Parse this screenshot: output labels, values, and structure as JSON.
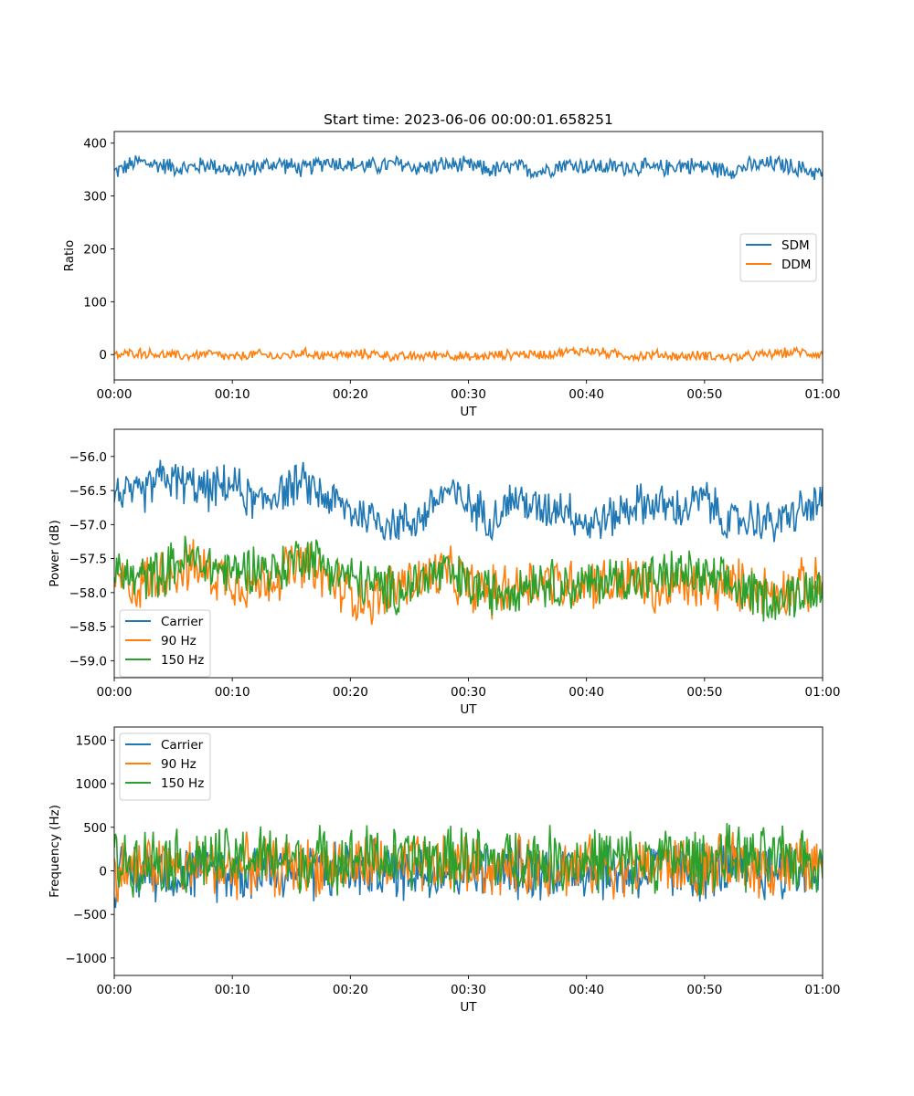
{
  "figure_title": "Start time: 2023-06-06 00:00:01.658251",
  "x_ticks": [
    "00:00",
    "00:10",
    "00:20",
    "00:30",
    "00:40",
    "00:50",
    "01:00"
  ],
  "colors": {
    "blue": "#1f77b4",
    "orange": "#ff7f0e",
    "green": "#2ca02c"
  },
  "chart_data": [
    {
      "type": "line",
      "xlabel": "UT",
      "ylabel": "Ratio",
      "xlim": [
        "00:00",
        "01:00"
      ],
      "ylim": [
        -48,
        422
      ],
      "y_ticks": [
        0,
        100,
        200,
        300,
        400
      ],
      "y_tick_labels": [
        "0",
        "100",
        "200",
        "300",
        "400"
      ],
      "legend_position": "center-right",
      "x_minutes": [
        0,
        2,
        4,
        6,
        8,
        10,
        12,
        14,
        16,
        18,
        20,
        22,
        24,
        26,
        28,
        30,
        32,
        34,
        36,
        38,
        40,
        42,
        44,
        46,
        48,
        50,
        52,
        54,
        56,
        58,
        60
      ],
      "series": [
        {
          "name": "SDM",
          "color": "#1f77b4",
          "values": [
            345,
            365,
            358,
            352,
            360,
            348,
            355,
            362,
            350,
            366,
            358,
            356,
            361,
            353,
            359,
            357,
            349,
            355,
            346,
            360,
            357,
            354,
            356,
            351,
            359,
            355,
            348,
            357,
            361,
            352,
            343
          ],
          "noise": 16
        },
        {
          "name": "DDM",
          "color": "#ff7f0e",
          "values": [
            -2,
            4,
            0,
            -3,
            2,
            -6,
            1,
            -4,
            3,
            -2,
            0,
            2,
            -5,
            -3,
            1,
            -6,
            -2,
            1,
            0,
            4,
            8,
            2,
            -3,
            0,
            -4,
            -1,
            -6,
            -3,
            2,
            5,
            0
          ],
          "noise": 9
        }
      ]
    },
    {
      "type": "line",
      "xlabel": "UT",
      "ylabel": "Power (dB)",
      "xlim": [
        "00:00",
        "01:00"
      ],
      "ylim": [
        -59.25,
        -55.6
      ],
      "y_ticks": [
        -56.0,
        -56.5,
        -57.0,
        -57.5,
        -58.0,
        -58.5,
        -59.0
      ],
      "y_tick_labels": [
        "−56.0",
        "−56.5",
        "−57.0",
        "−57.5",
        "−58.0",
        "−58.5",
        "−59.0"
      ],
      "legend_position": "lower-left",
      "x_minutes": [
        0,
        2,
        4,
        6,
        8,
        10,
        12,
        14,
        16,
        18,
        20,
        22,
        24,
        26,
        28,
        30,
        32,
        34,
        36,
        38,
        40,
        42,
        44,
        46,
        48,
        50,
        52,
        54,
        56,
        58,
        60
      ],
      "series": [
        {
          "name": "Carrier",
          "color": "#1f77b4",
          "values": [
            -56.5,
            -56.6,
            -56.3,
            -56.4,
            -56.5,
            -56.4,
            -56.7,
            -56.5,
            -56.4,
            -56.6,
            -56.8,
            -56.9,
            -57.0,
            -56.9,
            -56.5,
            -56.7,
            -56.9,
            -56.6,
            -56.8,
            -56.7,
            -57.0,
            -56.9,
            -56.7,
            -56.7,
            -56.8,
            -56.6,
            -57.0,
            -56.9,
            -57.0,
            -56.8,
            -56.7
          ],
          "noise": 0.3
        },
        {
          "name": "90 Hz",
          "color": "#ff7f0e",
          "values": [
            -57.8,
            -57.9,
            -57.7,
            -57.6,
            -57.7,
            -57.8,
            -57.9,
            -57.7,
            -57.6,
            -57.8,
            -58.0,
            -58.1,
            -57.9,
            -57.8,
            -57.7,
            -57.9,
            -58.0,
            -57.9,
            -57.8,
            -57.9,
            -57.8,
            -57.9,
            -57.8,
            -58.0,
            -57.9,
            -57.9,
            -57.9,
            -57.9,
            -58.0,
            -57.9,
            -57.9
          ],
          "noise": 0.38
        },
        {
          "name": "150 Hz",
          "color": "#2ca02c",
          "values": [
            -57.7,
            -57.8,
            -57.7,
            -57.5,
            -57.6,
            -57.7,
            -57.6,
            -57.7,
            -57.4,
            -57.6,
            -57.8,
            -57.9,
            -58.0,
            -57.8,
            -57.7,
            -57.9,
            -58.0,
            -57.9,
            -57.8,
            -57.9,
            -57.9,
            -57.8,
            -57.8,
            -57.8,
            -57.7,
            -57.8,
            -57.9,
            -58.0,
            -58.1,
            -58.0,
            -57.9
          ],
          "noise": 0.35
        }
      ]
    },
    {
      "type": "line",
      "xlabel": "UT",
      "ylabel": "Frequency (Hz)",
      "xlim": [
        "00:00",
        "01:00"
      ],
      "ylim": [
        -1200,
        1650
      ],
      "y_ticks": [
        -1000,
        -500,
        0,
        500,
        1000,
        1500
      ],
      "y_tick_labels": [
        "−1000",
        "−500",
        "0",
        "500",
        "1000",
        "1500"
      ],
      "legend_position": "upper-left",
      "x_minutes": [
        0,
        2,
        4,
        6,
        8,
        10,
        12,
        14,
        16,
        18,
        20,
        22,
        24,
        26,
        28,
        30,
        32,
        34,
        36,
        38,
        40,
        42,
        44,
        46,
        48,
        50,
        52,
        54,
        56,
        58,
        60
      ],
      "series": [
        {
          "name": "Carrier",
          "color": "#1f77b4",
          "values": [
            -50,
            0,
            20,
            -30,
            10,
            -20,
            30,
            0,
            -10,
            20,
            0,
            40,
            -20,
            10,
            0,
            30,
            -20,
            0,
            20,
            -10,
            10,
            0,
            -20,
            10,
            0,
            -10,
            20,
            0,
            -20,
            10,
            0
          ],
          "noise": 330
        },
        {
          "name": "90 Hz",
          "color": "#ff7f0e",
          "values": [
            0,
            50,
            70,
            20,
            60,
            30,
            80,
            50,
            40,
            70,
            50,
            90,
            30,
            60,
            50,
            80,
            30,
            50,
            70,
            40,
            60,
            50,
            30,
            60,
            50,
            40,
            70,
            50,
            30,
            60,
            50
          ],
          "noise": 330
        },
        {
          "name": "150 Hz",
          "color": "#2ca02c",
          "values": [
            80,
            130,
            150,
            100,
            140,
            110,
            160,
            130,
            120,
            150,
            130,
            170,
            110,
            140,
            130,
            160,
            110,
            130,
            150,
            120,
            140,
            130,
            110,
            140,
            130,
            120,
            150,
            130,
            110,
            140,
            130
          ],
          "noise": 360
        }
      ]
    }
  ]
}
